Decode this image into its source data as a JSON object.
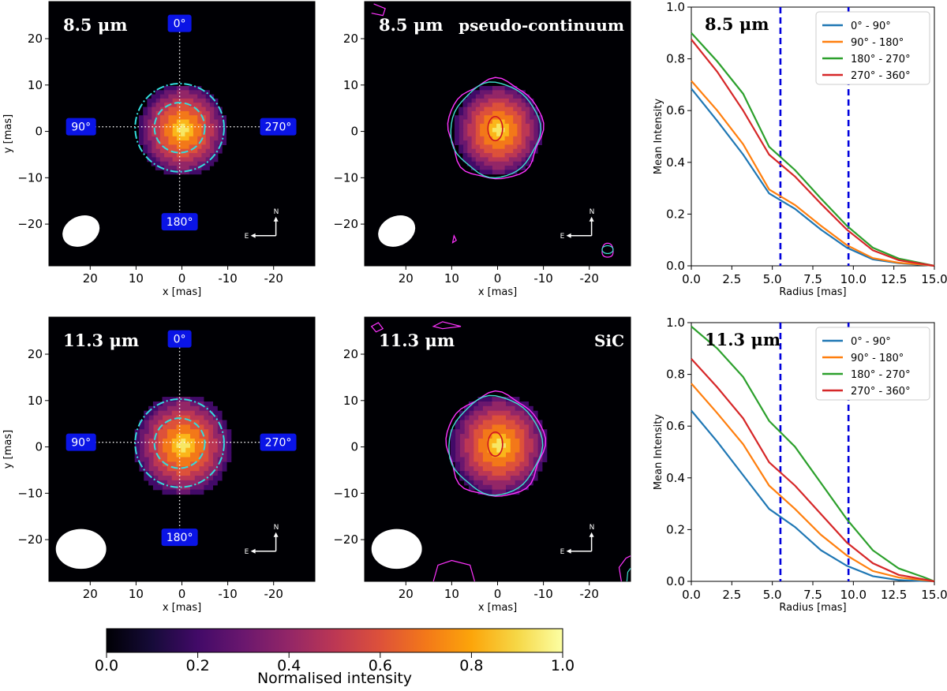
{
  "colors": {
    "series": [
      "#1f77b4",
      "#ff7f0e",
      "#2ca02c",
      "#d62728"
    ],
    "marker_lines": "#0000dd",
    "angle_box": "#0a14e6",
    "ring": "#33dddd",
    "contour_outer": "#ff33ff",
    "contour_mid": "#40e0d0",
    "contour_inner": "#cc1122"
  },
  "image_axes": {
    "xlabel": "x [mas]",
    "ylabel": "y [mas]",
    "xticks": [
      20,
      10,
      0,
      -10,
      -20
    ],
    "yticks": [
      20,
      10,
      0,
      -10,
      -20
    ],
    "extent": [
      29,
      -29,
      -29,
      28
    ],
    "angle_labels": [
      "0°",
      "90°",
      "180°",
      "270°"
    ],
    "compass": {
      "north": "N",
      "east": "E"
    }
  },
  "panels": [
    {
      "wavelength": "8.5 μm",
      "title": "",
      "beam": [
        22,
        -21.5,
        4.2,
        3.2
      ],
      "core": [
        0.8,
        0.3,
        4.5,
        6.2
      ]
    },
    {
      "wavelength": "8.5 μm",
      "title": "pseudo-continuum",
      "beam": [
        22,
        -21.5,
        4.2,
        3.2
      ],
      "core": [
        0.8,
        0.3,
        4.5,
        6.2
      ]
    },
    {
      "wavelength": "11.3 μm",
      "title": "",
      "beam": [
        22,
        -22,
        5.5,
        4.3
      ],
      "core": [
        0.8,
        0.3,
        5.5,
        6.8
      ]
    },
    {
      "wavelength": "11.3 μm",
      "title": "SiC",
      "beam": [
        22,
        -22,
        5.5,
        4.3
      ],
      "core": [
        0.8,
        0.3,
        5.5,
        6.8
      ]
    }
  ],
  "chart_data": [
    {
      "type": "line",
      "title": "8.5 μm",
      "xlabel": "Radius [mas]",
      "ylabel": "Mean Intensity",
      "xlim": [
        0,
        15
      ],
      "ylim": [
        0,
        1
      ],
      "xticks": [
        "0.0",
        "2.5",
        "5.0",
        "7.5",
        "10.0",
        "12.5",
        "15.0"
      ],
      "yticks": [
        "0.0",
        "0.2",
        "0.4",
        "0.6",
        "0.8",
        "1.0"
      ],
      "vlines": [
        5.5,
        9.7
      ],
      "legend_loc": "upper-right",
      "x": [
        0,
        1.6,
        3.2,
        4.8,
        6.4,
        8.0,
        9.6,
        11.2,
        12.8,
        14.4,
        15.0
      ],
      "series": [
        {
          "name": "0° - 90°",
          "values": [
            0.685,
            0.56,
            0.43,
            0.28,
            0.22,
            0.14,
            0.07,
            0.025,
            0.01,
            0.003,
            0.0
          ]
        },
        {
          "name": "90° - 180°",
          "values": [
            0.715,
            0.6,
            0.47,
            0.295,
            0.235,
            0.155,
            0.08,
            0.03,
            0.012,
            0.004,
            0.0
          ]
        },
        {
          "name": "180° - 270°",
          "values": [
            0.9,
            0.79,
            0.665,
            0.46,
            0.37,
            0.26,
            0.155,
            0.07,
            0.028,
            0.008,
            0.0
          ]
        },
        {
          "name": "270° - 360°",
          "values": [
            0.875,
            0.75,
            0.6,
            0.43,
            0.345,
            0.24,
            0.14,
            0.06,
            0.022,
            0.006,
            0.0
          ]
        }
      ]
    },
    {
      "type": "line",
      "title": "11.3 μm",
      "xlabel": "Radius [mas]",
      "ylabel": "Mean Intensity",
      "xlim": [
        0,
        15
      ],
      "ylim": [
        0,
        1
      ],
      "xticks": [
        "0.0",
        "2.5",
        "5.0",
        "7.5",
        "10.0",
        "12.5",
        "15.0"
      ],
      "yticks": [
        "0.0",
        "0.2",
        "0.4",
        "0.6",
        "0.8",
        "1.0"
      ],
      "vlines": [
        5.5,
        9.7
      ],
      "legend_loc": "upper-right",
      "x": [
        0,
        1.6,
        3.2,
        4.8,
        6.4,
        8.0,
        9.6,
        11.2,
        12.8,
        14.4,
        15.0
      ],
      "series": [
        {
          "name": "0° - 90°",
          "values": [
            0.66,
            0.54,
            0.41,
            0.28,
            0.21,
            0.12,
            0.06,
            0.02,
            0.005,
            0.001,
            0.0
          ]
        },
        {
          "name": "90° - 180°",
          "values": [
            0.765,
            0.65,
            0.53,
            0.37,
            0.28,
            0.18,
            0.1,
            0.04,
            0.015,
            0.004,
            0.0
          ]
        },
        {
          "name": "180° - 270°",
          "values": [
            0.985,
            0.9,
            0.79,
            0.62,
            0.52,
            0.38,
            0.24,
            0.12,
            0.05,
            0.015,
            0.0
          ]
        },
        {
          "name": "270° - 360°",
          "values": [
            0.86,
            0.75,
            0.63,
            0.46,
            0.37,
            0.26,
            0.15,
            0.07,
            0.025,
            0.007,
            0.0
          ]
        }
      ]
    }
  ],
  "colorbar": {
    "label": "Normalised intensity",
    "ticks": [
      "0.0",
      "0.2",
      "0.4",
      "0.6",
      "0.8",
      "1.0"
    ],
    "range": [
      0,
      1
    ],
    "colormap": "inferno"
  }
}
